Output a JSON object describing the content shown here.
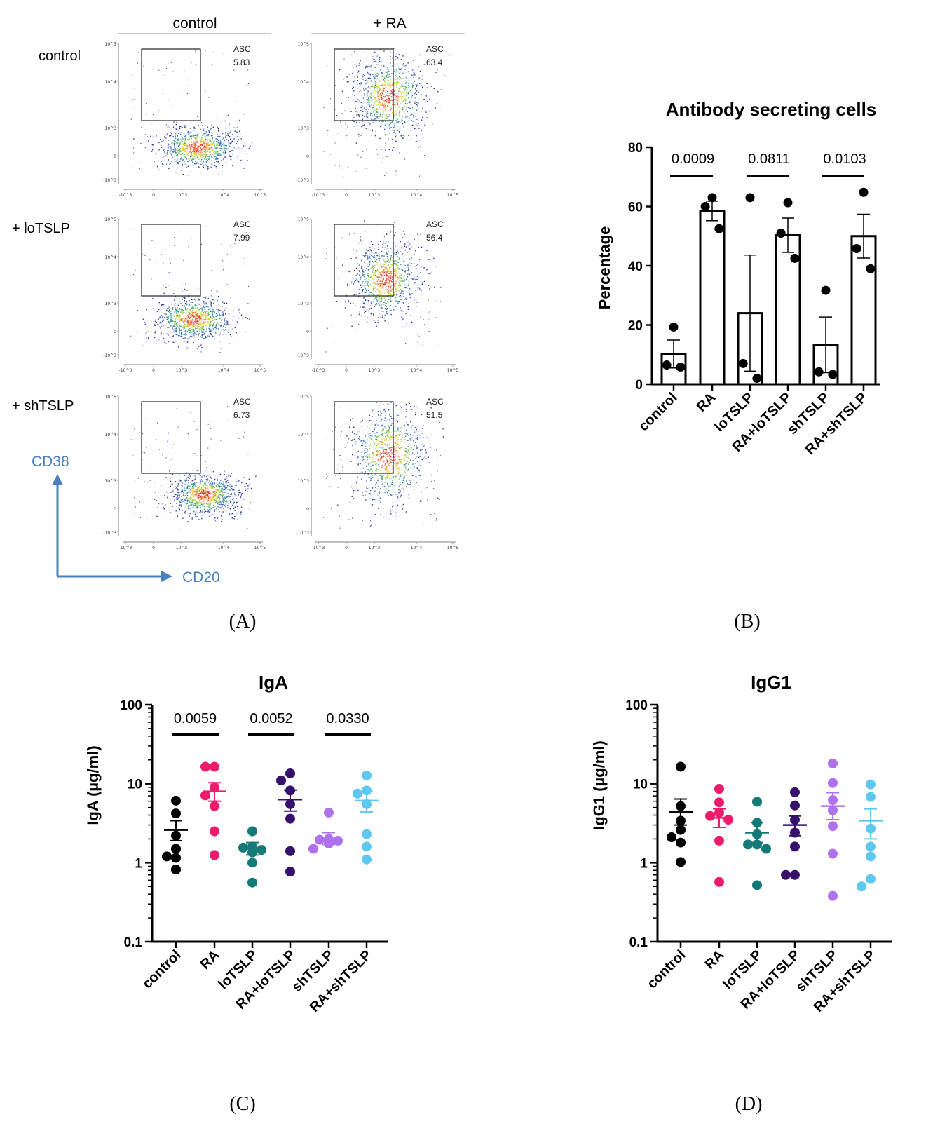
{
  "panel_a": {
    "col_labels": [
      "control",
      "+ RA"
    ],
    "row_labels": [
      "control",
      "+ loTSLP",
      "+ shTSLP"
    ],
    "gate_label": "ASC",
    "gate_values": [
      [
        "5.83",
        "63.4"
      ],
      [
        "7.99",
        "56.4"
      ],
      [
        "6.73",
        "51.5"
      ]
    ],
    "y_axis_label": "CD38",
    "x_axis_label": "CD20",
    "y_tick_labels": [
      "10^5",
      "10^4",
      "10^3",
      "0",
      "-10^3"
    ],
    "x_tick_labels": [
      "-10^3",
      "0",
      "10^3",
      "10^4",
      "10^5"
    ],
    "letter": "(A)"
  },
  "panel_b_letter": "(B)",
  "panel_c_letter": "(C)",
  "panel_d_letter": "(D)",
  "chart_data": [
    {
      "type": "bar",
      "title": "Antibody secreting cells",
      "ylabel": "Percentage",
      "ylim": [
        0,
        80
      ],
      "yticks": [
        0,
        20,
        40,
        60,
        80
      ],
      "categories": [
        "control",
        "RA",
        "loTSLP",
        "RA+loTSLP",
        "shTSLP",
        "RA+shTSLP"
      ],
      "values": [
        10.2,
        58.5,
        24.0,
        50.3,
        13.3,
        50.0
      ],
      "sem": [
        4.7,
        3.3,
        19.6,
        5.8,
        9.4,
        7.4
      ],
      "points": [
        [
          19.3,
          6.5,
          5.8
        ],
        [
          63.0,
          60.0,
          52.5
        ],
        [
          63.0,
          7.0,
          2.0
        ],
        [
          61.3,
          51.0,
          42.5
        ],
        [
          31.7,
          4.2,
          3.3
        ],
        [
          64.8,
          45.8,
          39.0
        ]
      ],
      "comparisons": [
        {
          "from": "control",
          "to": "RA",
          "p": "0.0009"
        },
        {
          "from": "loTSLP",
          "to": "RA+loTSLP",
          "p": "0.0811"
        },
        {
          "from": "shTSLP",
          "to": "RA+shTSLP",
          "p": "0.0103"
        }
      ]
    },
    {
      "type": "scatter",
      "title": "IgA",
      "ylabel": "IgA (µg/ml)",
      "yscale": "log",
      "ylim": [
        0.1,
        100
      ],
      "ytick_labels": [
        "0.1",
        "1",
        "10",
        "100"
      ],
      "categories": [
        "control",
        "RA",
        "loTSLP",
        "RA+loTSLP",
        "shTSLP",
        "RA+shTSLP"
      ],
      "colors": [
        "#000000",
        "#ee1a6b",
        "#137a78",
        "#37106c",
        "#b072ec",
        "#5ec8f2"
      ],
      "means": [
        2.6,
        8.0,
        1.5,
        6.3,
        2.0,
        6.1
      ],
      "sem_low": [
        1.9,
        6.0,
        1.25,
        4.5,
        1.7,
        4.4
      ],
      "sem_high": [
        3.4,
        10.3,
        1.8,
        8.3,
        2.4,
        7.9
      ],
      "points": [
        [
          6.1,
          4.2,
          2.2,
          1.5,
          1.2,
          1.15,
          0.82
        ],
        [
          16.4,
          16.4,
          9.0,
          7.1,
          5.2,
          2.5,
          1.25
        ],
        [
          2.5,
          1.6,
          1.55,
          1.45,
          1.35,
          1.0,
          0.56
        ],
        [
          13.5,
          11.0,
          8.2,
          5.5,
          3.6,
          1.4,
          0.77
        ],
        [
          4.3,
          2.0,
          1.95,
          1.9,
          1.8,
          1.75,
          1.5
        ],
        [
          12.7,
          8.2,
          7.5,
          5.5,
          2.3,
          1.6,
          1.1
        ]
      ],
      "comparisons": [
        {
          "from": "control",
          "to": "RA",
          "p": "0.0059"
        },
        {
          "from": "loTSLP",
          "to": "RA+loTSLP",
          "p": "0.0052"
        },
        {
          "from": "shTSLP",
          "to": "RA+shTSLP",
          "p": "0.0330"
        }
      ]
    },
    {
      "type": "scatter",
      "title": "IgG1",
      "ylabel": "IgG1 (µg/ml)",
      "yscale": "log",
      "ylim": [
        0.1,
        100
      ],
      "ytick_labels": [
        "0.1",
        "1",
        "10",
        "100"
      ],
      "categories": [
        "control",
        "RA",
        "loTSLP",
        "RA+loTSLP",
        "shTSLP",
        "RA+shTSLP"
      ],
      "colors": [
        "#000000",
        "#ee1a6b",
        "#137a78",
        "#37106c",
        "#b072ec",
        "#5ec8f2"
      ],
      "means": [
        4.4,
        3.7,
        2.4,
        3.0,
        5.2,
        3.4
      ],
      "sem_low": [
        3.0,
        2.8,
        1.8,
        2.2,
        3.5,
        2.0
      ],
      "sem_high": [
        6.4,
        4.8,
        3.2,
        3.9,
        7.7,
        4.8
      ],
      "points": [
        [
          16.4,
          5.2,
          3.4,
          2.6,
          2.1,
          1.8,
          1.02
        ],
        [
          8.6,
          5.8,
          4.3,
          3.9,
          3.5,
          1.9,
          0.57
        ],
        [
          5.9,
          3.2,
          2.3,
          1.7,
          1.7,
          1.5,
          0.52
        ],
        [
          7.8,
          5.3,
          3.5,
          2.4,
          1.6,
          0.7,
          0.7
        ],
        [
          18.0,
          10.2,
          6.2,
          4.6,
          2.9,
          1.3,
          0.38
        ],
        [
          9.8,
          6.8,
          2.7,
          1.6,
          1.2,
          0.62,
          0.5
        ]
      ]
    }
  ]
}
